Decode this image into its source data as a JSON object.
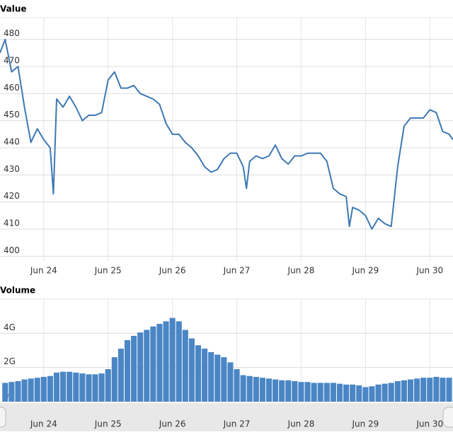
{
  "chart_data": [
    {
      "type": "line",
      "title": "Value",
      "color": "#3d78b4",
      "grid": true,
      "x": [
        23.32,
        23.4,
        23.5,
        23.6,
        23.7,
        23.8,
        23.9,
        24.0,
        24.1,
        24.15,
        24.2,
        24.3,
        24.4,
        24.5,
        24.6,
        24.7,
        24.8,
        24.9,
        25.0,
        25.1,
        25.2,
        25.3,
        25.4,
        25.5,
        25.6,
        25.7,
        25.8,
        25.9,
        26.0,
        26.1,
        26.2,
        26.3,
        26.4,
        26.5,
        26.6,
        26.7,
        26.8,
        26.9,
        27.0,
        27.1,
        27.15,
        27.2,
        27.3,
        27.4,
        27.5,
        27.6,
        27.7,
        27.8,
        27.9,
        28.0,
        28.1,
        28.2,
        28.3,
        28.4,
        28.5,
        28.6,
        28.7,
        28.75,
        28.8,
        28.9,
        29.0,
        29.1,
        29.2,
        29.3,
        29.4,
        29.5,
        29.6,
        29.7,
        29.8,
        29.9,
        30.0,
        30.1,
        30.2,
        30.3,
        30.36
      ],
      "values": [
        475,
        480,
        468,
        470,
        455,
        442,
        447,
        443,
        440,
        423,
        458,
        455,
        459,
        455,
        450,
        452,
        452,
        453,
        465,
        468,
        462,
        462,
        463,
        460,
        459,
        458,
        456,
        449,
        445,
        445,
        442,
        440,
        437,
        433,
        431,
        432,
        436,
        438,
        438,
        433,
        425,
        435,
        437,
        436,
        437,
        441,
        436,
        434,
        437,
        437,
        438,
        438,
        438,
        435,
        425,
        423,
        422,
        411,
        418,
        417,
        415,
        410,
        414,
        412,
        411,
        433,
        448,
        451,
        451,
        451,
        454,
        453,
        446,
        445,
        443
      ],
      "xlim": [
        23.32,
        30.36
      ],
      "xticks": [
        {
          "value": 24,
          "label": "Jun 24"
        },
        {
          "value": 25,
          "label": "Jun 25"
        },
        {
          "value": 26,
          "label": "Jun 26"
        },
        {
          "value": 27,
          "label": "Jun 27"
        },
        {
          "value": 28,
          "label": "Jun 28"
        },
        {
          "value": 29,
          "label": "Jun 29"
        },
        {
          "value": 30,
          "label": "Jun 30"
        }
      ],
      "ylim": [
        398,
        488
      ],
      "yticks": [
        400,
        410,
        420,
        430,
        440,
        450,
        460,
        470,
        480
      ]
    },
    {
      "type": "bar",
      "title": "Volume",
      "color": "#4a86c5",
      "grid": true,
      "x": [
        23.4,
        23.5,
        23.6,
        23.7,
        23.8,
        23.9,
        24.0,
        24.1,
        24.2,
        24.3,
        24.4,
        24.5,
        24.6,
        24.7,
        24.8,
        24.9,
        25.0,
        25.1,
        25.2,
        25.3,
        25.4,
        25.5,
        25.6,
        25.7,
        25.8,
        25.9,
        26.0,
        26.1,
        26.2,
        26.3,
        26.4,
        26.5,
        26.6,
        26.7,
        26.8,
        26.9,
        27.0,
        27.1,
        27.2,
        27.3,
        27.4,
        27.5,
        27.6,
        27.7,
        27.8,
        27.9,
        28.0,
        28.1,
        28.2,
        28.3,
        28.4,
        28.5,
        28.6,
        28.7,
        28.8,
        28.9,
        29.0,
        29.1,
        29.2,
        29.3,
        29.4,
        29.5,
        29.6,
        29.7,
        29.8,
        29.9,
        30.0,
        30.1,
        30.2,
        30.3
      ],
      "values": [
        1100000000,
        1150000000,
        1200000000,
        1300000000,
        1350000000,
        1400000000,
        1450000000,
        1500000000,
        1700000000,
        1750000000,
        1750000000,
        1700000000,
        1650000000,
        1600000000,
        1600000000,
        1650000000,
        1900000000,
        2600000000,
        3100000000,
        3600000000,
        3850000000,
        4050000000,
        4200000000,
        4400000000,
        4550000000,
        4700000000,
        4900000000,
        4700000000,
        4200000000,
        3700000000,
        3300000000,
        3100000000,
        2900000000,
        2750000000,
        2600000000,
        2300000000,
        1900000000,
        1550000000,
        1500000000,
        1450000000,
        1400000000,
        1350000000,
        1300000000,
        1250000000,
        1250000000,
        1200000000,
        1150000000,
        1150000000,
        1100000000,
        1100000000,
        1100000000,
        1100000000,
        1050000000,
        1000000000,
        1000000000,
        950000000,
        850000000,
        900000000,
        1000000000,
        1050000000,
        1100000000,
        1200000000,
        1250000000,
        1300000000,
        1350000000,
        1400000000,
        1400000000,
        1450000000,
        1400000000,
        1400000000
      ],
      "xlim": [
        23.32,
        30.36
      ],
      "xticks": [
        {
          "value": 24,
          "label": "Jun 24"
        },
        {
          "value": 25,
          "label": "Jun 25"
        },
        {
          "value": 26,
          "label": "Jun 26"
        },
        {
          "value": 27,
          "label": "Jun 27"
        },
        {
          "value": 28,
          "label": "Jun 28"
        },
        {
          "value": 29,
          "label": "Jun 29"
        },
        {
          "value": 30,
          "label": "Jun 30"
        }
      ],
      "ylim": [
        0,
        6000000000
      ],
      "yticks": [
        0,
        {
          "value": 2000000000,
          "label": "2G"
        },
        {
          "value": 4000000000,
          "label": "4G"
        }
      ]
    }
  ]
}
